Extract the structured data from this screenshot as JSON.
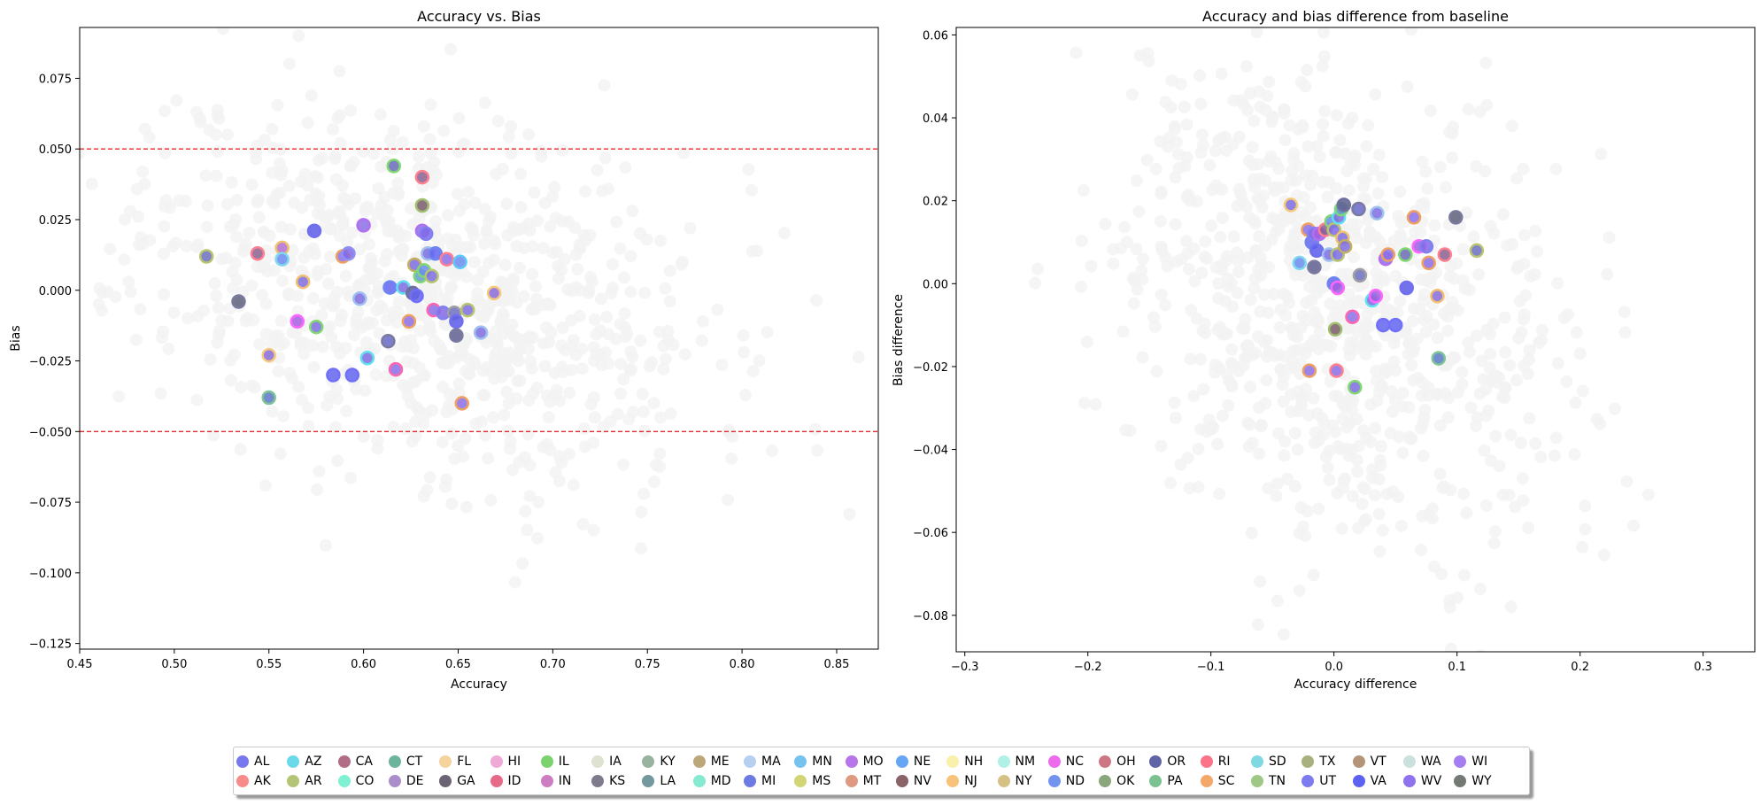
{
  "chart_data": [
    {
      "type": "scatter",
      "title": "Accuracy vs. Bias",
      "xlabel": "Accuracy",
      "ylabel": "Bias",
      "xlim": [
        0.45,
        0.872
      ],
      "ylim": [
        -0.127,
        0.093
      ],
      "xticks": [
        "0.45",
        "0.50",
        "0.55",
        "0.60",
        "0.65",
        "0.70",
        "0.75",
        "0.80",
        "0.85"
      ],
      "yticks": [
        "−0.125",
        "−0.100",
        "−0.075",
        "−0.050",
        "−0.025",
        "0.000",
        "0.025",
        "0.050",
        "0.075"
      ],
      "hlines": [
        {
          "y": 0.05,
          "color": "#e8262a",
          "style": "dashed"
        },
        {
          "y": -0.05,
          "color": "#e8262a",
          "style": "dashed"
        }
      ],
      "background_cloud_color": "#f2f2f2",
      "highlighted": [
        {
          "x": 0.517,
          "y": 0.012,
          "edge": "#b8c470",
          "fill": "#6c6fbf"
        },
        {
          "x": 0.544,
          "y": 0.013,
          "edge": "#ff7f8f",
          "fill": "#8b5f8f"
        },
        {
          "x": 0.534,
          "y": -0.004,
          "edge": "#7a7aa0",
          "fill": "#5e5e78"
        },
        {
          "x": 0.55,
          "y": -0.023,
          "edge": "#f6c97c",
          "fill": "#8a6bd8"
        },
        {
          "x": 0.55,
          "y": -0.038,
          "edge": "#7ec497",
          "fill": "#5a78c6"
        },
        {
          "x": 0.557,
          "y": 0.015,
          "edge": "#f0c070",
          "fill": "#b070d0"
        },
        {
          "x": 0.557,
          "y": 0.011,
          "edge": "#80d8f0",
          "fill": "#6a8cf0"
        },
        {
          "x": 0.565,
          "y": -0.011,
          "edge": "#ff66ff",
          "fill": "#a45fe0"
        },
        {
          "x": 0.568,
          "y": 0.003,
          "edge": "#f0c070",
          "fill": "#7c6de0"
        },
        {
          "x": 0.574,
          "y": 0.021,
          "edge": "#6f6ff0",
          "fill": "#5b5be8"
        },
        {
          "x": 0.575,
          "y": -0.013,
          "edge": "#80d870",
          "fill": "#7c6de0"
        },
        {
          "x": 0.584,
          "y": -0.03,
          "edge": "#7070f8",
          "fill": "#6464f0"
        },
        {
          "x": 0.589,
          "y": 0.012,
          "edge": "#f0a060",
          "fill": "#8c6ee6"
        },
        {
          "x": 0.592,
          "y": 0.013,
          "edge": "#9090f0",
          "fill": "#8068e8"
        },
        {
          "x": 0.594,
          "y": -0.03,
          "edge": "#7070f8",
          "fill": "#6464f0"
        },
        {
          "x": 0.598,
          "y": -0.003,
          "edge": "#a0c0f0",
          "fill": "#7c6de0"
        },
        {
          "x": 0.6,
          "y": 0.023,
          "edge": "#b070f0",
          "fill": "#8c6ee6"
        },
        {
          "x": 0.602,
          "y": -0.024,
          "edge": "#60e0f0",
          "fill": "#7c6de0"
        },
        {
          "x": 0.613,
          "y": -0.018,
          "edge": "#7a7aa0",
          "fill": "#6868c8"
        },
        {
          "x": 0.614,
          "y": 0.001,
          "edge": "#6e84f0",
          "fill": "#6464f0"
        },
        {
          "x": 0.616,
          "y": 0.044,
          "edge": "#80d870",
          "fill": "#6a6ab8"
        },
        {
          "x": 0.617,
          "y": -0.028,
          "edge": "#ff66b0",
          "fill": "#8c6ee6"
        },
        {
          "x": 0.621,
          "y": 0.001,
          "edge": "#60e0f0",
          "fill": "#7c6de0"
        },
        {
          "x": 0.624,
          "y": -0.011,
          "edge": "#f0a060",
          "fill": "#8c6ee6"
        },
        {
          "x": 0.626,
          "y": -0.001,
          "edge": "#7070a0",
          "fill": "#5e5e90"
        },
        {
          "x": 0.627,
          "y": 0.009,
          "edge": "#c4b060",
          "fill": "#7c6de0"
        },
        {
          "x": 0.628,
          "y": -0.002,
          "edge": "#7070f8",
          "fill": "#6464f0"
        },
        {
          "x": 0.63,
          "y": 0.005,
          "edge": "#80d870",
          "fill": "#60a0d0"
        },
        {
          "x": 0.631,
          "y": 0.04,
          "edge": "#ff7f8f",
          "fill": "#8b5f8f"
        },
        {
          "x": 0.631,
          "y": 0.03,
          "edge": "#a0c070",
          "fill": "#7a5a6a"
        },
        {
          "x": 0.631,
          "y": 0.021,
          "edge": "#b070f0",
          "fill": "#8c6ee6"
        },
        {
          "x": 0.632,
          "y": 0.007,
          "edge": "#80d870",
          "fill": "#6a8cf0"
        },
        {
          "x": 0.633,
          "y": 0.02,
          "edge": "#8080f0",
          "fill": "#8068e8"
        },
        {
          "x": 0.634,
          "y": 0.013,
          "edge": "#a0c0f0",
          "fill": "#7c6de0"
        },
        {
          "x": 0.636,
          "y": 0.005,
          "edge": "#b8c470",
          "fill": "#7c6de0"
        },
        {
          "x": 0.637,
          "y": -0.007,
          "edge": "#ff66b0",
          "fill": "#8c6ee6"
        },
        {
          "x": 0.638,
          "y": 0.013,
          "edge": "#6e84f0",
          "fill": "#6464f0"
        },
        {
          "x": 0.642,
          "y": -0.008,
          "edge": "#8080f0",
          "fill": "#8068e8"
        },
        {
          "x": 0.644,
          "y": 0.011,
          "edge": "#ff7f8f",
          "fill": "#8c6ee6"
        },
        {
          "x": 0.648,
          "y": -0.008,
          "edge": "#a0a0a0",
          "fill": "#6e6ec0"
        },
        {
          "x": 0.649,
          "y": -0.011,
          "edge": "#6f6ff0",
          "fill": "#5b5be8"
        },
        {
          "x": 0.649,
          "y": -0.016,
          "edge": "#7a7aa0",
          "fill": "#5e5e90"
        },
        {
          "x": 0.651,
          "y": 0.01,
          "edge": "#60c8f8",
          "fill": "#6a8cf0"
        },
        {
          "x": 0.652,
          "y": -0.04,
          "edge": "#f0a060",
          "fill": "#8c6ee6"
        },
        {
          "x": 0.655,
          "y": -0.007,
          "edge": "#b8c470",
          "fill": "#7c6de0"
        },
        {
          "x": 0.662,
          "y": -0.015,
          "edge": "#a0c0f0",
          "fill": "#7c6de0"
        },
        {
          "x": 0.669,
          "y": -0.001,
          "edge": "#f6c97c",
          "fill": "#8a6bd8"
        }
      ]
    },
    {
      "type": "scatter",
      "title": "Accuracy and bias difference from baseline",
      "xlabel": "Accuracy difference",
      "ylabel": "Bias difference",
      "xlim": [
        -0.307,
        0.342
      ],
      "ylim": [
        -0.0888,
        0.0618
      ],
      "xticks": [
        "−0.3",
        "−0.2",
        "−0.1",
        "0.0",
        "0.1",
        "0.2",
        "0.3"
      ],
      "yticks": [
        "−0.08",
        "−0.06",
        "−0.04",
        "−0.02",
        "0.00",
        "0.02",
        "0.04",
        "0.06"
      ],
      "background_cloud_color": "#f2f2f2",
      "highlighted": [
        {
          "x": -0.035,
          "y": 0.019,
          "edge": "#f6c97c",
          "fill": "#7c6de0"
        },
        {
          "x": -0.028,
          "y": 0.005,
          "edge": "#80d8f0",
          "fill": "#6a8cf0"
        },
        {
          "x": -0.021,
          "y": 0.013,
          "edge": "#f0a060",
          "fill": "#8c6ee6"
        },
        {
          "x": -0.02,
          "y": -0.021,
          "edge": "#f0a060",
          "fill": "#8c6ee6"
        },
        {
          "x": -0.018,
          "y": 0.01,
          "edge": "#6e84f0",
          "fill": "#6464f0"
        },
        {
          "x": -0.016,
          "y": 0.012,
          "edge": "#8080f0",
          "fill": "#8068e8"
        },
        {
          "x": -0.016,
          "y": 0.004,
          "edge": "#7a7aa0",
          "fill": "#5e5e90"
        },
        {
          "x": -0.014,
          "y": 0.008,
          "edge": "#6f6ff0",
          "fill": "#5b5be8"
        },
        {
          "x": -0.012,
          "y": 0.012,
          "edge": "#b070f0",
          "fill": "#a45fe0"
        },
        {
          "x": -0.007,
          "y": 0.013,
          "edge": "#ff7f8f",
          "fill": "#8b5f8f"
        },
        {
          "x": -0.004,
          "y": 0.007,
          "edge": "#a0c0f0",
          "fill": "#7c6de0"
        },
        {
          "x": -0.002,
          "y": 0.015,
          "edge": "#80d870",
          "fill": "#6a8cf0"
        },
        {
          "x": 0.0,
          "y": 0.013,
          "edge": "#b8c470",
          "fill": "#8068e8"
        },
        {
          "x": 0.0,
          "y": 0.0,
          "edge": "#6e84f0",
          "fill": "#6464f0"
        },
        {
          "x": 0.001,
          "y": -0.011,
          "edge": "#a0c070",
          "fill": "#7a5a6a"
        },
        {
          "x": 0.002,
          "y": -0.021,
          "edge": "#ff7f8f",
          "fill": "#8c6ee6"
        },
        {
          "x": 0.003,
          "y": 0.007,
          "edge": "#b8c470",
          "fill": "#7c6de0"
        },
        {
          "x": 0.003,
          "y": -0.001,
          "edge": "#ff66ff",
          "fill": "#a45fe0"
        },
        {
          "x": 0.004,
          "y": 0.016,
          "edge": "#60e0f0",
          "fill": "#7c6de0"
        },
        {
          "x": 0.006,
          "y": 0.018,
          "edge": "#80d870",
          "fill": "#60a0d0"
        },
        {
          "x": 0.007,
          "y": 0.011,
          "edge": "#f0c070",
          "fill": "#7c6de0"
        },
        {
          "x": 0.008,
          "y": 0.019,
          "edge": "#7070a0",
          "fill": "#5e5e90"
        },
        {
          "x": 0.009,
          "y": 0.009,
          "edge": "#c4b060",
          "fill": "#7c6de0"
        },
        {
          "x": 0.015,
          "y": -0.008,
          "edge": "#ff66b0",
          "fill": "#8c6ee6"
        },
        {
          "x": 0.017,
          "y": -0.025,
          "edge": "#80d870",
          "fill": "#7c6de0"
        },
        {
          "x": 0.02,
          "y": 0.018,
          "edge": "#7a7aa0",
          "fill": "#6868c8"
        },
        {
          "x": 0.021,
          "y": 0.002,
          "edge": "#a0a0a0",
          "fill": "#6e6ec0"
        },
        {
          "x": 0.031,
          "y": -0.004,
          "edge": "#60e0f0",
          "fill": "#7c6de0"
        },
        {
          "x": 0.034,
          "y": -0.003,
          "edge": "#ff66ff",
          "fill": "#a45fe0"
        },
        {
          "x": 0.035,
          "y": 0.017,
          "edge": "#a0c0f0",
          "fill": "#7c6de0"
        },
        {
          "x": 0.04,
          "y": -0.01,
          "edge": "#7070f8",
          "fill": "#6464f0"
        },
        {
          "x": 0.042,
          "y": 0.006,
          "edge": "#b070f0",
          "fill": "#8c6ee6"
        },
        {
          "x": 0.044,
          "y": 0.007,
          "edge": "#f0a060",
          "fill": "#8c6ee6"
        },
        {
          "x": 0.05,
          "y": -0.01,
          "edge": "#7070f8",
          "fill": "#6464f0"
        },
        {
          "x": 0.058,
          "y": 0.007,
          "edge": "#80d870",
          "fill": "#6a6ab8"
        },
        {
          "x": 0.059,
          "y": -0.001,
          "edge": "#6f6ff0",
          "fill": "#5b5be8"
        },
        {
          "x": 0.065,
          "y": 0.016,
          "edge": "#f0a060",
          "fill": "#8c6ee6"
        },
        {
          "x": 0.069,
          "y": 0.009,
          "edge": "#ff66ff",
          "fill": "#a45fe0"
        },
        {
          "x": 0.075,
          "y": 0.009,
          "edge": "#8080f0",
          "fill": "#8068e8"
        },
        {
          "x": 0.077,
          "y": 0.005,
          "edge": "#f0a060",
          "fill": "#8c6ee6"
        },
        {
          "x": 0.084,
          "y": -0.003,
          "edge": "#f0c070",
          "fill": "#8a6bd8"
        },
        {
          "x": 0.085,
          "y": -0.018,
          "edge": "#7ec497",
          "fill": "#5a78c6"
        },
        {
          "x": 0.09,
          "y": 0.007,
          "edge": "#ff7f8f",
          "fill": "#8b5f8f"
        },
        {
          "x": 0.099,
          "y": 0.016,
          "edge": "#7a7aa0",
          "fill": "#5e5e78"
        },
        {
          "x": 0.116,
          "y": 0.008,
          "edge": "#b8c470",
          "fill": "#6c6fbf"
        }
      ]
    }
  ],
  "legend": {
    "columns": [
      [
        {
          "label": "AL",
          "color": "#7777ee"
        },
        {
          "label": "AK",
          "color": "#f98a8a"
        }
      ],
      [
        {
          "label": "AZ",
          "color": "#6cd9ea"
        },
        {
          "label": "AR",
          "color": "#b4c476"
        }
      ],
      [
        {
          "label": "CA",
          "color": "#b16d85"
        },
        {
          "label": "CO",
          "color": "#7ff1d2"
        }
      ],
      [
        {
          "label": "CT",
          "color": "#6cb59c"
        },
        {
          "label": "DE",
          "color": "#ab8ccb"
        }
      ],
      [
        {
          "label": "FL",
          "color": "#f6d29c"
        },
        {
          "label": "GA",
          "color": "#6b6475"
        }
      ],
      [
        {
          "label": "HI",
          "color": "#eea9d6"
        },
        {
          "label": "ID",
          "color": "#e76988"
        }
      ],
      [
        {
          "label": "IL",
          "color": "#7bd36f"
        },
        {
          "label": "IN",
          "color": "#cd7bc3"
        }
      ],
      [
        {
          "label": "IA",
          "color": "#dde3cf"
        },
        {
          "label": "KS",
          "color": "#7f7a8c"
        }
      ],
      [
        {
          "label": "KY",
          "color": "#98b39f"
        },
        {
          "label": "LA",
          "color": "#7498a0"
        }
      ],
      [
        {
          "label": "ME",
          "color": "#bca778"
        },
        {
          "label": "MD",
          "color": "#86ead0"
        }
      ],
      [
        {
          "label": "MA",
          "color": "#b7cff1"
        },
        {
          "label": "MI",
          "color": "#6c7ae3"
        }
      ],
      [
        {
          "label": "MN",
          "color": "#76c2ef"
        },
        {
          "label": "MS",
          "color": "#d2d574"
        }
      ],
      [
        {
          "label": "MO",
          "color": "#b874e9"
        },
        {
          "label": "MT",
          "color": "#de9a80"
        }
      ],
      [
        {
          "label": "NE",
          "color": "#67a6f4"
        },
        {
          "label": "NV",
          "color": "#8a6369"
        }
      ],
      [
        {
          "label": "NH",
          "color": "#f9f0ab"
        },
        {
          "label": "NJ",
          "color": "#f8c27a"
        }
      ],
      [
        {
          "label": "NM",
          "color": "#b1f1e5"
        },
        {
          "label": "NY",
          "color": "#d5c184"
        }
      ],
      [
        {
          "label": "NC",
          "color": "#ec6bec"
        },
        {
          "label": "ND",
          "color": "#7393f0"
        }
      ],
      [
        {
          "label": "OH",
          "color": "#cf7685"
        },
        {
          "label": "OK",
          "color": "#8aa77b"
        }
      ],
      [
        {
          "label": "OR",
          "color": "#6064a4"
        },
        {
          "label": "PA",
          "color": "#7ac28f"
        }
      ],
      [
        {
          "label": "RI",
          "color": "#fb7389"
        },
        {
          "label": "SC",
          "color": "#f3a86a"
        }
      ],
      [
        {
          "label": "SD",
          "color": "#80d8e3"
        },
        {
          "label": "TN",
          "color": "#9fc887"
        }
      ],
      [
        {
          "label": "TX",
          "color": "#a8b07e"
        },
        {
          "label": "UT",
          "color": "#7d7bed"
        }
      ],
      [
        {
          "label": "VT",
          "color": "#b5957a"
        },
        {
          "label": "VA",
          "color": "#5d61ef"
        }
      ],
      [
        {
          "label": "WA",
          "color": "#cbe1dd"
        },
        {
          "label": "WV",
          "color": "#8e72ee"
        }
      ],
      [
        {
          "label": "WI",
          "color": "#a57ef0"
        },
        {
          "label": "WY",
          "color": "#727a73"
        }
      ]
    ]
  }
}
